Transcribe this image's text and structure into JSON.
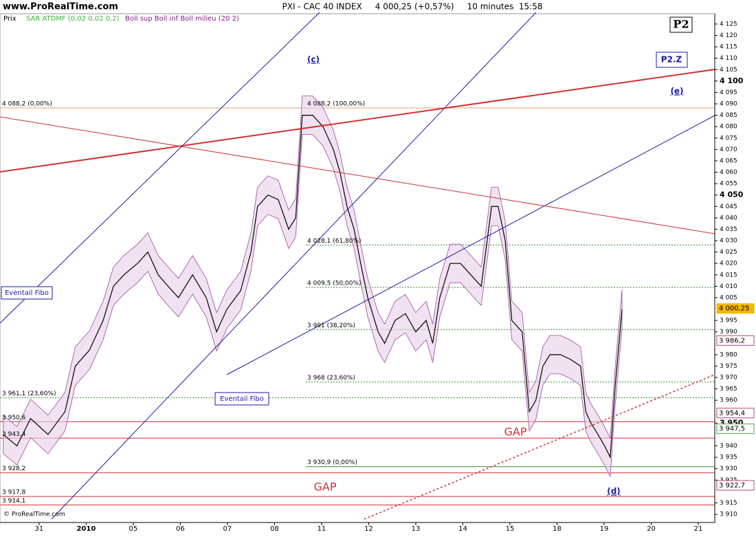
{
  "chart_data": {
    "type": "line",
    "site": "www.ProRealTime.com",
    "title": "PXI - CAC 40 INDEX     4 000,25 (+0,57%)     10 minutes  15:58",
    "indicators": [
      "SAR ATDMF (0,02 0,02 0,2)",
      "Boll sup Boll inf Boll milieu (20 2)"
    ],
    "copyright": "© ProRealTime.com",
    "annotations": {
      "p2": "P2",
      "p2z": "P2.Z",
      "c": "(c)",
      "e": "(e)",
      "d": "(d)",
      "gap1": "GAP",
      "gap2": "GAP",
      "fan1": "Eventail Fibo",
      "fan2": "Eventail Fibo"
    },
    "series": [
      {
        "name": "Prix",
        "color": "#000000",
        "x": [
          -0.76,
          -0.47,
          -0.18,
          0.19,
          0.55,
          0.77,
          1.07,
          1.36,
          1.58,
          1.8,
          2.09,
          2.31,
          2.53,
          2.74,
          2.96,
          3.26,
          3.55,
          3.77,
          3.99,
          4.28,
          4.5,
          4.64,
          4.86,
          5.08,
          5.3,
          5.45,
          5.59,
          5.81,
          6.03,
          6.25,
          6.39,
          6.54,
          6.69,
          6.83,
          6.98,
          7.2,
          7.34,
          7.56,
          7.78,
          8.0,
          8.22,
          8.36,
          8.51,
          8.73,
          8.95,
          9.17,
          9.39,
          9.61,
          9.75,
          9.9,
          10.04,
          10.26,
          10.41,
          10.55,
          10.7,
          10.85,
          11.07,
          11.28,
          11.5,
          11.61,
          11.72,
          11.87,
          12.01,
          12.13,
          12.23,
          12.38
        ],
        "values": [
          3945,
          3940,
          3952,
          3945,
          3955,
          3975,
          3982,
          3995,
          4010,
          4015,
          4020,
          4025,
          4015,
          4010,
          4005,
          4015,
          4005,
          3990,
          4000,
          4008,
          4025,
          4045,
          4050,
          4048,
          4035,
          4040,
          4085,
          4085,
          4080,
          4070,
          4060,
          4045,
          4035,
          4020,
          4005,
          3990,
          3985,
          3995,
          3998,
          3990,
          3995,
          3985,
          4005,
          4020,
          4020,
          4015,
          4010,
          4045,
          4045,
          4030,
          3995,
          3990,
          3955,
          3960,
          3975,
          3980,
          3980,
          3978,
          3975,
          3955,
          3950,
          3945,
          3940,
          3935,
          3965,
          4000
        ]
      }
    ],
    "band_color": "#e8cfe8",
    "xlim": [
      -0.83,
      14.35
    ],
    "xticks": [
      {
        "value": 0,
        "label": "31"
      },
      {
        "value": 1,
        "label": "2010"
      },
      {
        "value": 2,
        "label": "05"
      },
      {
        "value": 3,
        "label": "06"
      },
      {
        "value": 4,
        "label": "07"
      },
      {
        "value": 5,
        "label": "08"
      },
      {
        "value": 6,
        "label": "11"
      },
      {
        "value": 7,
        "label": "12"
      },
      {
        "value": 8,
        "label": "13"
      },
      {
        "value": 9,
        "label": "14"
      },
      {
        "value": 10,
        "label": "15"
      },
      {
        "value": 11,
        "label": "18"
      },
      {
        "value": 12,
        "label": "19"
      },
      {
        "value": 13,
        "label": "20"
      },
      {
        "value": 14,
        "label": "21"
      }
    ],
    "ylim": [
      3906.4,
      4129.5
    ],
    "yticks": [
      {
        "value": 4125,
        "label": "4 125"
      },
      {
        "value": 4120,
        "label": "4 120"
      },
      {
        "value": 4115,
        "label": "4 115"
      },
      {
        "value": 4110,
        "label": "4 110"
      },
      {
        "value": 4105,
        "label": "4 105"
      },
      {
        "value": 4100,
        "label": "4 100"
      },
      {
        "value": 4095,
        "label": "4 095"
      },
      {
        "value": 4090,
        "label": "4 090"
      },
      {
        "value": 4085,
        "label": "4 085"
      },
      {
        "value": 4080,
        "label": "4 080"
      },
      {
        "value": 4075,
        "label": "4 075"
      },
      {
        "value": 4070,
        "label": "4 070"
      },
      {
        "value": 4065,
        "label": "4 065"
      },
      {
        "value": 4060,
        "label": "4 060"
      },
      {
        "value": 4055,
        "label": "4 055"
      },
      {
        "value": 4050,
        "label": "4 050"
      },
      {
        "value": 4045,
        "label": "4 045"
      },
      {
        "value": 4040,
        "label": "4 040"
      },
      {
        "value": 4035,
        "label": "4 035"
      },
      {
        "value": 4030,
        "label": "4 030"
      },
      {
        "value": 4025,
        "label": "4 025"
      },
      {
        "value": 4020,
        "label": "4 020"
      },
      {
        "value": 4015,
        "label": "4 015"
      },
      {
        "value": 4010,
        "label": "4 010"
      },
      {
        "value": 4005,
        "label": "4 005"
      },
      {
        "value": 3995,
        "label": "3 995"
      },
      {
        "value": 3990,
        "label": "3 990"
      },
      {
        "value": 3980,
        "label": "3 980"
      },
      {
        "value": 3975,
        "label": "3 975"
      },
      {
        "value": 3970,
        "label": "3 970"
      },
      {
        "value": 3965,
        "label": "3 965"
      },
      {
        "value": 3960,
        "label": "3 960"
      },
      {
        "value": 3950,
        "label": "3 950"
      },
      {
        "value": 3940,
        "label": "3 940"
      },
      {
        "value": 3935,
        "label": "3 935"
      },
      {
        "value": 3930,
        "label": "3 930"
      },
      {
        "value": 3925,
        "label": "3 925"
      },
      {
        "value": 3915,
        "label": "3 915"
      },
      {
        "value": 3910,
        "label": "3 910"
      }
    ],
    "fib_levels": [
      {
        "label": "4 088,2 (100,00%)",
        "value": 4088.2,
        "color": "#e8a070",
        "style": "solid"
      },
      {
        "label": "4 028,1 (61,80%)",
        "value": 4028.1,
        "color": "#2e8b2e",
        "style": "dashed"
      },
      {
        "label": "4 009,5 (50,00%)",
        "value": 4009.5,
        "color": "#2e8b2e",
        "style": "dashed"
      },
      {
        "label": "3 991 (38,20%)",
        "value": 3991,
        "color": "#2e8b2e",
        "style": "dashed"
      },
      {
        "label": "3 968 (23,60%)",
        "value": 3968,
        "color": "#2e8b2e",
        "style": "dashed"
      },
      {
        "label": "3 930,9 (0,00%)",
        "value": 3930.9,
        "color": "#2e8b2e",
        "style": "solid"
      }
    ],
    "left_levels": [
      {
        "label": "4 088,2 (0,00%)",
        "value": 4088.2,
        "color": "#e8a070",
        "style": "solid"
      },
      {
        "label": "3 961,1 (23,60%)",
        "value": 3961.1,
        "color": "#2e8b2e",
        "style": "dashed"
      },
      {
        "label": "3 950,6",
        "value": 3950.6,
        "color": "#d03030",
        "style": "solid"
      },
      {
        "label": "3 943,4",
        "value": 3943.4,
        "color": "#d03030",
        "style": "solid"
      },
      {
        "label": "3 928,2",
        "value": 3928.2,
        "color": "#d03030",
        "style": "solid"
      },
      {
        "label": "3 917,8",
        "value": 3917.8,
        "color": "#d03030",
        "style": "solid"
      },
      {
        "label": "3 914,1",
        "value": 3914.1,
        "color": "#d03030",
        "style": "solid"
      }
    ],
    "price_tags": [
      {
        "label": "4 000,25",
        "value": 4000.25,
        "color": "#f5b800"
      },
      {
        "label": "3 986,2",
        "value": 3986.2,
        "color": "#c04080"
      },
      {
        "label": "3 954,4",
        "value": 3954.4,
        "color": "#c04080"
      },
      {
        "label": "3 947,5",
        "value": 3947.5,
        "color": "#40b040"
      },
      {
        "label": "3 922,7",
        "value": 3922.7,
        "color": "#c04080"
      }
    ]
  }
}
